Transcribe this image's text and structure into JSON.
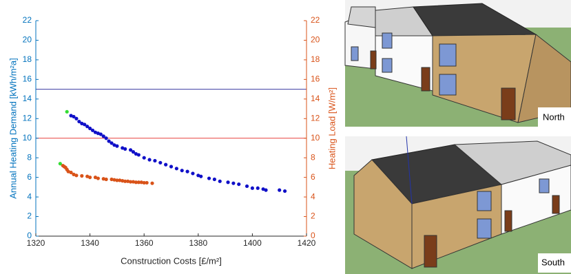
{
  "chart_data": {
    "type": "scatter",
    "xlabel": "Construction Costs [£/m²]",
    "ylabel": "Annual Heating Demand [kWh/m²a]",
    "y2label": "Heating Load [W/m²]",
    "xlim": [
      1320,
      1420
    ],
    "xticks": [
      1320,
      1340,
      1360,
      1380,
      1400,
      1420
    ],
    "ylim": [
      0,
      22
    ],
    "yticks": [
      0,
      2,
      4,
      6,
      8,
      10,
      12,
      14,
      16,
      18,
      20,
      22
    ],
    "y2lim": [
      0,
      22
    ],
    "y2ticks": [
      0,
      2,
      4,
      6,
      8,
      10,
      12,
      14,
      16,
      18,
      20,
      22
    ],
    "y_axis_color": "#0072bd",
    "y2_axis_color": "#d95319",
    "reference_lines": [
      {
        "value": 15,
        "color": "#3a3aa0"
      },
      {
        "value": 10,
        "color": "#e8413c"
      }
    ],
    "series": [
      {
        "color": "#1010c8",
        "x": [
          1333,
          1334,
          1335,
          1336,
          1337,
          1338,
          1339,
          1340,
          1341,
          1342,
          1343,
          1344,
          1345,
          1346,
          1347,
          1348,
          1349,
          1350,
          1352,
          1353,
          1355,
          1356,
          1357,
          1358,
          1360,
          1362,
          1364,
          1366,
          1368,
          1370,
          1372,
          1374,
          1376,
          1378,
          1380,
          1381,
          1384,
          1386,
          1388,
          1391,
          1393,
          1395,
          1398,
          1400,
          1402,
          1404,
          1405,
          1410,
          1412
        ],
        "values": [
          12.3,
          12.2,
          12.0,
          11.7,
          11.5,
          11.4,
          11.2,
          11.0,
          10.8,
          10.6,
          10.5,
          10.4,
          10.2,
          10.0,
          9.7,
          9.5,
          9.3,
          9.2,
          9.0,
          8.9,
          8.8,
          8.6,
          8.4,
          8.3,
          8.0,
          7.8,
          7.7,
          7.5,
          7.3,
          7.1,
          6.9,
          6.7,
          6.6,
          6.4,
          6.2,
          6.1,
          5.9,
          5.8,
          5.6,
          5.5,
          5.4,
          5.3,
          5.1,
          4.9,
          4.9,
          4.8,
          4.7,
          4.7,
          4.6
        ]
      },
      {
        "color": "#33dd33",
        "x": [
          1331.5
        ],
        "values": [
          12.7
        ]
      },
      {
        "color": "#d95319",
        "axis": "y2",
        "x": [
          1330,
          1330.5,
          1331,
          1331.5,
          1332,
          1333,
          1334,
          1335,
          1337,
          1339,
          1340,
          1342,
          1343,
          1345,
          1346,
          1348,
          1349,
          1350,
          1351,
          1352,
          1353,
          1354,
          1355,
          1356,
          1357,
          1358,
          1359,
          1360,
          1361,
          1363
        ],
        "values": [
          7.2,
          7.1,
          7.0,
          6.8,
          6.6,
          6.5,
          6.3,
          6.2,
          6.15,
          6.1,
          6.0,
          6.0,
          5.9,
          5.85,
          5.8,
          5.8,
          5.75,
          5.7,
          5.7,
          5.65,
          5.6,
          5.6,
          5.55,
          5.55,
          5.5,
          5.5,
          5.5,
          5.45,
          5.45,
          5.4
        ]
      },
      {
        "color": "#33dd33",
        "axis": "y2",
        "x": [
          1329
        ],
        "values": [
          7.4
        ]
      }
    ]
  },
  "images": [
    {
      "label": "North"
    },
    {
      "label": "South"
    }
  ]
}
